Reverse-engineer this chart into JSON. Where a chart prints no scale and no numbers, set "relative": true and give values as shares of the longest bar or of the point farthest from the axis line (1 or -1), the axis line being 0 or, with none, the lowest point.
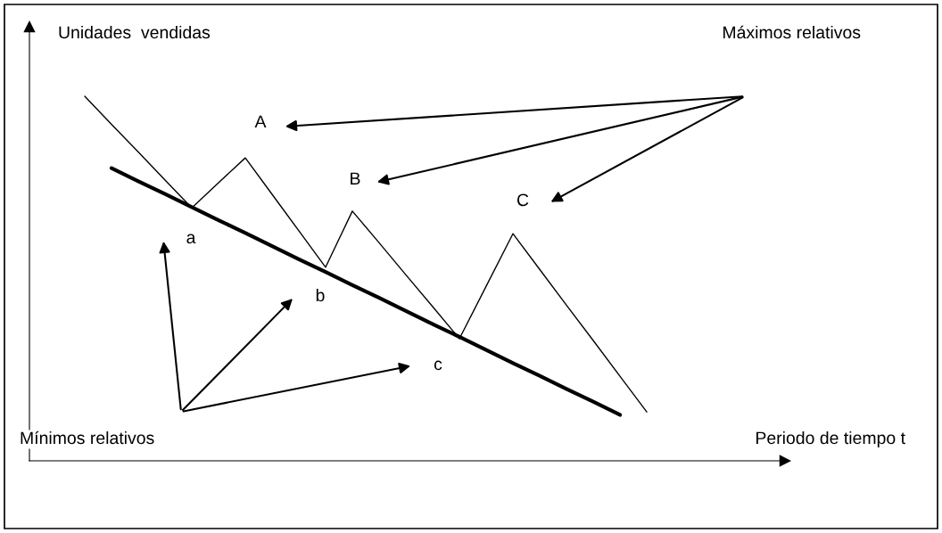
{
  "chart_data": {
    "type": "line",
    "relative": true,
    "line_style": "solid",
    "ylabel": "Unidades  vendidas",
    "categories": [
      null,
      null,
      null,
      null,
      null,
      null,
      null,
      null,
      null,
      null,
      null,
      null,
      null,
      null,
      null,
      null,
      null,
      null,
      null,
      null,
      null,
      null
    ],
    "series": [
      {
        "color": "#000000",
        "values": [
          1,
          0.923,
          0.847,
          0.77,
          0.694,
          0.763,
          0.831,
          0.731,
          0.631,
          0.531,
          0.685,
          0.598,
          0.51,
          0.423,
          0.335,
          0.479,
          0.623,
          0.525,
          0.427,
          0.33,
          0.232,
          0.134
        ]
      },
      {
        "color": "#000000",
        "values": [
          null,
          0.803,
          0.767,
          0.732,
          0.696,
          0.66,
          0.625,
          0.589,
          0.553,
          0.518,
          0.482,
          0.447,
          0.411,
          0.375,
          0.34,
          0.304,
          0.268,
          0.233,
          0.197,
          0.162,
          0.126,
          null
        ]
      }
    ],
    "annotations": [
      "Máximos relativos",
      "Mínimos relativos",
      "A",
      "B",
      "C",
      "a",
      "b",
      "c",
      "Periodo de tiempo t"
    ]
  }
}
